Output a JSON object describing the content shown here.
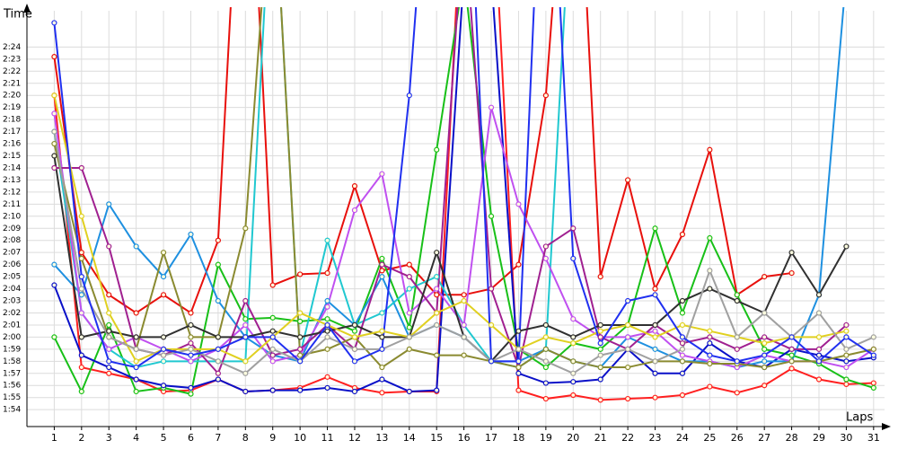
{
  "chart_data": {
    "type": "line",
    "y_label": "Time",
    "x_label": "Laps",
    "x": [
      1,
      2,
      3,
      4,
      5,
      6,
      7,
      8,
      9,
      10,
      11,
      12,
      13,
      14,
      15,
      16,
      17,
      18,
      19,
      20,
      21,
      22,
      23,
      24,
      25,
      26,
      27,
      28,
      29,
      30,
      31
    ],
    "xlim": [
      0,
      31.4
    ],
    "xticks": [
      1,
      2,
      3,
      4,
      5,
      6,
      7,
      8,
      9,
      10,
      11,
      12,
      13,
      14,
      15,
      16,
      17,
      18,
      19,
      20,
      21,
      22,
      23,
      24,
      25,
      26,
      27,
      28,
      29,
      30,
      31
    ],
    "ylim": [
      112.6,
      147
    ],
    "yticks": [
      {
        "value": 114,
        "label": "1:54"
      },
      {
        "value": 115,
        "label": "1:55"
      },
      {
        "value": 116,
        "label": "1:56"
      },
      {
        "value": 117,
        "label": "1:57"
      },
      {
        "value": 118,
        "label": "1:58"
      },
      {
        "value": 119,
        "label": "1:59"
      },
      {
        "value": 120,
        "label": "2:00"
      },
      {
        "value": 121,
        "label": "2:01"
      },
      {
        "value": 122,
        "label": "2:02"
      },
      {
        "value": 123,
        "label": "2:03"
      },
      {
        "value": 124,
        "label": "2:04"
      },
      {
        "value": 125,
        "label": "2:05"
      },
      {
        "value": 126,
        "label": "2:06"
      },
      {
        "value": 127,
        "label": "2:07"
      },
      {
        "value": 128,
        "label": "2:08"
      },
      {
        "value": 129,
        "label": "2:09"
      },
      {
        "value": 130,
        "label": "2:10"
      },
      {
        "value": 131,
        "label": "2:11"
      },
      {
        "value": 132,
        "label": "2:12"
      },
      {
        "value": 133,
        "label": "2:13"
      },
      {
        "value": 134,
        "label": "2:14"
      },
      {
        "value": 135,
        "label": "2:15"
      },
      {
        "value": 136,
        "label": "2:16"
      },
      {
        "value": 137,
        "label": "2:17"
      },
      {
        "value": 138,
        "label": "2:18"
      },
      {
        "value": 139,
        "label": "2:19"
      },
      {
        "value": 140,
        "label": "2:20"
      },
      {
        "value": 141,
        "label": "2:21"
      },
      {
        "value": 142,
        "label": "2:22"
      },
      {
        "value": 143,
        "label": "2:23"
      },
      {
        "value": 144,
        "label": "2:24"
      }
    ],
    "grid": true,
    "series": [
      {
        "color": "#e8100c",
        "values": [
          143.2,
          127,
          123.5,
          122,
          123.5,
          122,
          128,
          170,
          124.3,
          125.2,
          125.3,
          132.5,
          125.5,
          126,
          123.5,
          123.5,
          124,
          126,
          140,
          170,
          125,
          133,
          124,
          128.5,
          135.5,
          123.5,
          125,
          125.3,
          null,
          null,
          null
        ]
      },
      {
        "color": "#ff2020",
        "values": [
          140,
          117.5,
          117,
          116.5,
          115.5,
          115.6,
          116.5,
          115.5,
          115.6,
          115.8,
          116.7,
          115.8,
          115.4,
          115.5,
          115.5,
          160,
          160,
          115.6,
          114.9,
          115.2,
          114.8,
          114.9,
          115,
          115.2,
          115.9,
          115.4,
          116,
          117.4,
          116.5,
          116.1,
          116.2
        ]
      },
      {
        "color": "#18c018",
        "values": [
          120,
          115.5,
          121,
          115.5,
          115.8,
          115.3,
          126,
          121.5,
          121.6,
          121.3,
          121.5,
          120.5,
          126.5,
          120.8,
          135.5,
          150,
          130,
          119,
          117.5,
          119.5,
          119,
          121,
          129,
          122,
          128.2,
          123.5,
          119,
          118.5,
          117.8,
          116.5,
          115.8
        ]
      },
      {
        "color": "#0a10c8",
        "values": [
          124.3,
          118.5,
          117.5,
          116.5,
          116,
          115.8,
          116.5,
          115.5,
          115.6,
          115.6,
          115.8,
          115.5,
          116.5,
          115.5,
          115.6,
          150,
          150,
          117,
          116.2,
          116.3,
          116.5,
          119,
          117,
          117,
          119.5,
          118,
          117.5,
          119,
          118.5,
          118,
          118.3
        ]
      },
      {
        "color": "#1e90e0",
        "values": [
          126,
          123.5,
          131,
          127.5,
          125,
          128.5,
          123,
          120,
          118.5,
          118,
          123,
          121,
          125,
          120,
          121,
          120,
          118,
          118,
          119,
          118,
          117.5,
          120,
          119,
          118,
          118,
          117.5,
          118,
          118,
          123.5,
          150,
          null
        ]
      },
      {
        "color": "#20c8d0",
        "values": [
          137,
          122,
          119,
          117.5,
          118,
          118,
          118,
          118,
          160,
          118.5,
          128,
          121,
          122,
          124,
          125,
          121,
          118,
          117.5,
          119,
          160,
          null,
          null,
          null,
          null,
          null,
          null,
          null,
          null,
          null,
          null,
          null
        ]
      },
      {
        "color": "#c050f0",
        "values": [
          138.5,
          122,
          119,
          120,
          119,
          118,
          119,
          121,
          118,
          118.5,
          122.5,
          130.5,
          133.5,
          122,
          124,
          121,
          139,
          131,
          126.5,
          121.5,
          120,
          120,
          120.5,
          118.5,
          118,
          117.5,
          118.5,
          118,
          118,
          117.5,
          119
        ]
      },
      {
        "color": "#a02090",
        "values": [
          134,
          134,
          127.5,
          119,
          118.5,
          119.5,
          117,
          123,
          118.5,
          119,
          121,
          119,
          126,
          125,
          122,
          155,
          124,
          117.5,
          127.5,
          129,
          120,
          119,
          121,
          119.5,
          120,
          119,
          120,
          119,
          119,
          121,
          null
        ]
      },
      {
        "color": "#8a8a30",
        "values": [
          136,
          126.5,
          120,
          119,
          127,
          120,
          120,
          129,
          160,
          118.5,
          119,
          120,
          117.5,
          119,
          118.5,
          118.5,
          118,
          117.5,
          119,
          118,
          117.5,
          117.5,
          118,
          118,
          117.8,
          117.8,
          117.5,
          118,
          118,
          118.5,
          119
        ]
      },
      {
        "color": "#303030",
        "values": [
          135,
          120,
          120.5,
          120,
          120,
          121,
          120,
          120,
          120.5,
          120,
          120.5,
          121,
          120,
          120,
          127,
          120,
          118,
          120.5,
          121,
          120,
          121,
          121,
          121,
          123,
          124,
          123,
          122,
          127,
          123.5,
          127.5,
          null
        ]
      },
      {
        "color": "#e0d020",
        "values": [
          140,
          130,
          122,
          118,
          119,
          119,
          119,
          118,
          120,
          122,
          121,
          120,
          120.5,
          120,
          122,
          123,
          121,
          119,
          120,
          119.5,
          120.5,
          121,
          120,
          121,
          120.5,
          120,
          119.5,
          120,
          120,
          120.5,
          null
        ]
      },
      {
        "color": "#a0a0a0",
        "values": [
          137,
          124,
          120,
          119,
          118.5,
          119,
          118,
          117,
          119,
          118,
          120,
          119,
          119,
          120,
          121,
          120,
          118,
          119,
          118,
          117,
          118.5,
          119,
          118,
          119,
          125.5,
          120,
          122,
          120,
          122,
          119,
          120
        ]
      },
      {
        "color": "#2030f0",
        "values": [
          146,
          125,
          118,
          117.5,
          119,
          118.5,
          119,
          120,
          120,
          118,
          121,
          118,
          119,
          140,
          170,
          170,
          118,
          118,
          170,
          126.5,
          119.5,
          123,
          123.5,
          120,
          118.5,
          118,
          118.5,
          120,
          118,
          120,
          118.5
        ]
      }
    ]
  }
}
